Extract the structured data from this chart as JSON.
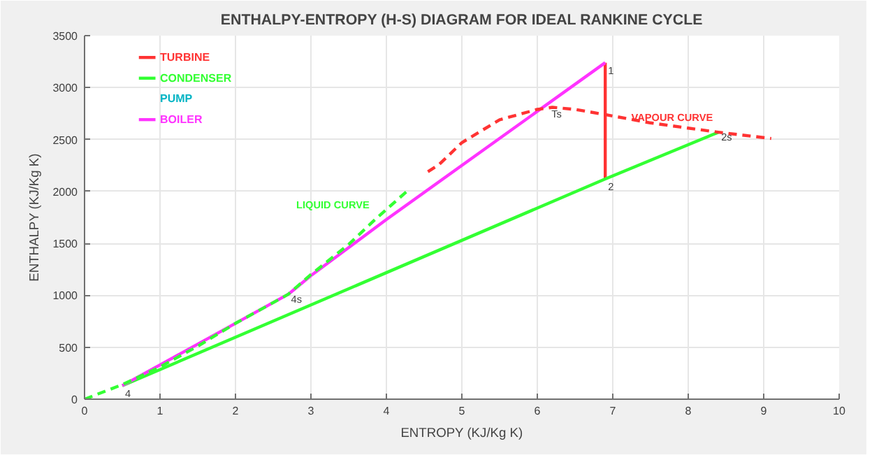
{
  "chart_data": {
    "type": "line",
    "title": "ENTHALPY-ENTROPY (H-S) DIAGRAM FOR IDEAL RANKINE CYCLE",
    "xlabel": "ENTROPY (KJ/Kg K)",
    "ylabel": "ENTHALPY (KJ/Kg K)",
    "xlim": [
      0,
      10
    ],
    "ylim": [
      0,
      3500
    ],
    "xticks": [
      0,
      1,
      2,
      3,
      4,
      5,
      6,
      7,
      8,
      9,
      10
    ],
    "yticks": [
      0,
      500,
      1000,
      1500,
      2000,
      2500,
      3000,
      3500
    ],
    "grid": true,
    "legend": "top left",
    "marker": "none",
    "series": [
      {
        "name": "TURBINE",
        "color": "#ff3333",
        "line_style": "solid",
        "x": [
          6.9,
          6.9
        ],
        "values": [
          3240,
          2120
        ]
      },
      {
        "name": "CONDENSER",
        "color": "#33ff33",
        "line_style": "solid",
        "x": [
          0.5,
          6.9,
          8.4
        ],
        "values": [
          130,
          2120,
          2570
        ]
      },
      {
        "name": "BOILER",
        "color": "#ff33ff",
        "line_style": "solid",
        "x": [
          0.5,
          2.7,
          3.0,
          4.0,
          6.9
        ],
        "values": [
          130,
          1010,
          1190,
          1730,
          3240
        ]
      },
      {
        "name": "LIQUID CURVE",
        "color": "#33ff33",
        "line_style": "dashed",
        "x": [
          0,
          0.5,
          1,
          1.5,
          2,
          2.5,
          2.7,
          3,
          3.5,
          3.85,
          4.3
        ],
        "values": [
          0,
          140,
          310,
          510,
          730,
          930,
          1010,
          1200,
          1490,
          1730,
          2020
        ]
      },
      {
        "name": "VAPOUR CURVE",
        "color": "#ff3333",
        "line_style": "dashed",
        "x": [
          4.55,
          4.7,
          5.0,
          5.5,
          6.0,
          6.2,
          6.5,
          6.9,
          7.5,
          8.4,
          9.1
        ],
        "values": [
          2190,
          2260,
          2470,
          2690,
          2790,
          2810,
          2790,
          2740,
          2660,
          2570,
          2510
        ]
      }
    ],
    "annotations": [
      "PUMP",
      {
        "text": "1",
        "x": 6.9,
        "y": 3240
      },
      {
        "text": "2",
        "x": 6.9,
        "y": 2120
      },
      {
        "text": "2s",
        "x": 8.4,
        "y": 2570
      },
      {
        "text": "Ts",
        "x": 6.15,
        "y": 2790
      },
      {
        "text": "4",
        "x": 0.5,
        "y": 130
      },
      {
        "text": "4s",
        "x": 2.7,
        "y": 1010
      }
    ]
  }
}
